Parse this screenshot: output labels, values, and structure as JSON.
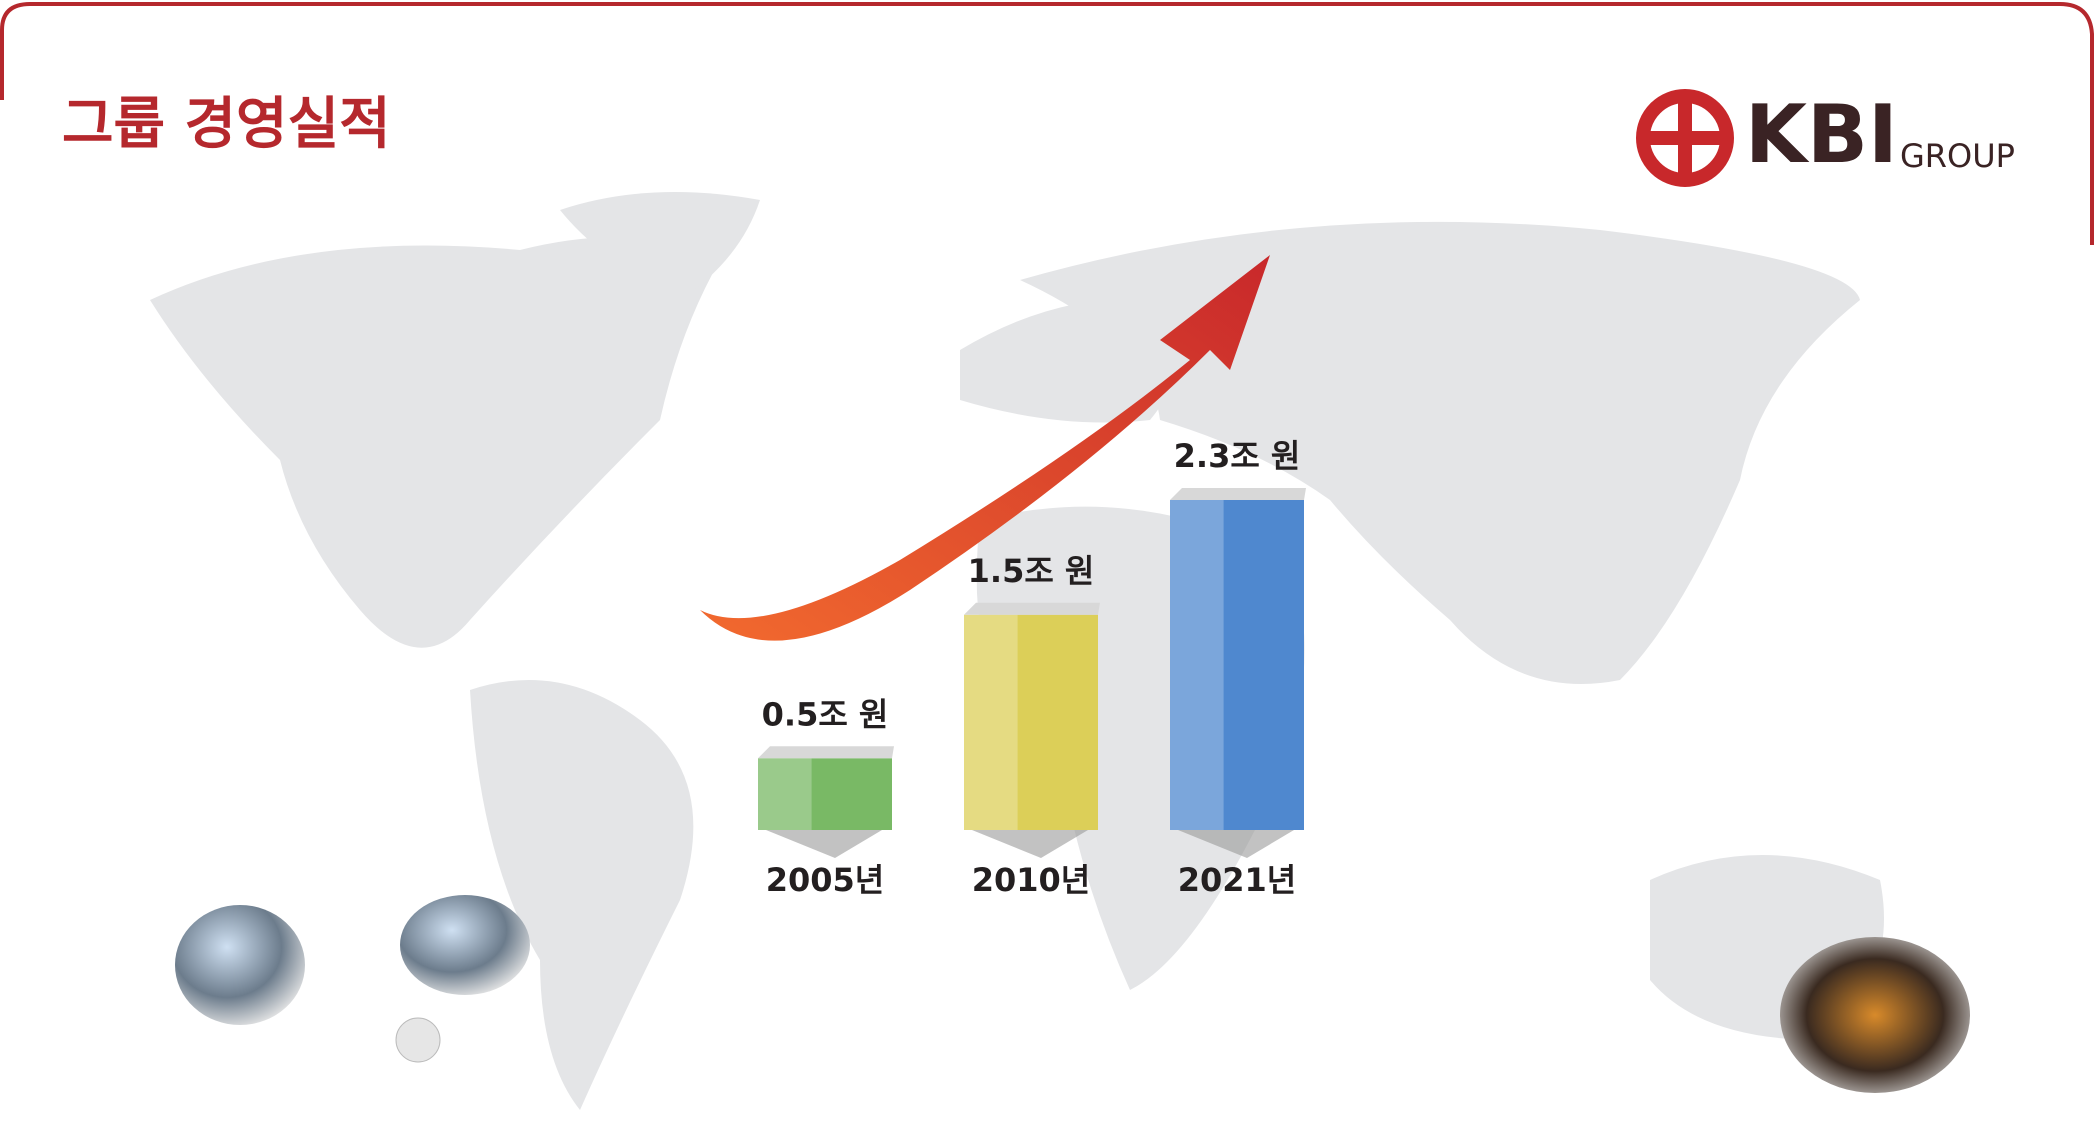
{
  "chart_data": {
    "type": "bar",
    "title": "그룹 경영실적",
    "categories": [
      "2005년",
      "2010년",
      "2021년"
    ],
    "values": [
      0.5,
      1.5,
      2.3
    ],
    "value_labels": [
      "0.5조 원",
      "1.5조 원",
      "2.3조 원"
    ],
    "colors": [
      "#79b965",
      "#dccf58",
      "#4f88cf"
    ]
  },
  "logo": {
    "name": "KBI",
    "suffix": "GROUP"
  }
}
